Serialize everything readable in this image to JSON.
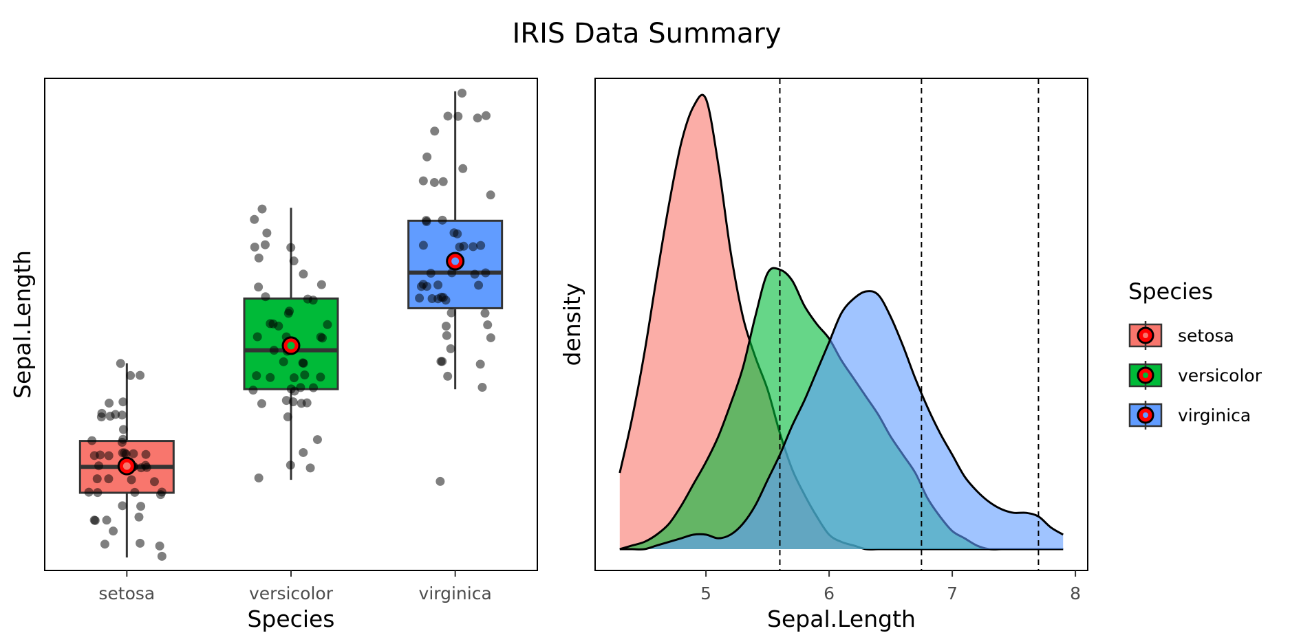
{
  "figure": {
    "title": "IRIS Data Summary"
  },
  "legend": {
    "title": "Species",
    "items": [
      {
        "label": "setosa",
        "color": "#F8766D"
      },
      {
        "label": "versicolor",
        "color": "#00BA38"
      },
      {
        "label": "virginica",
        "color": "#619CFF"
      }
    ]
  },
  "chart_data": [
    {
      "type": "box",
      "xlabel": "Species",
      "ylabel": "Sepal.Length",
      "categories": [
        "setosa",
        "versicolor",
        "virginica"
      ],
      "ylim": [
        4.2,
        8.0
      ],
      "y_ticks_shown": false,
      "grid": false,
      "colors": [
        "#F8766D",
        "#00BA38",
        "#619CFF"
      ],
      "mean_marker_color": "#FF0000",
      "boxes": [
        {
          "name": "setosa",
          "min": 4.3,
          "q1": 4.8,
          "median": 5.0,
          "q3": 5.2,
          "max": 5.8,
          "mean": 5.006
        },
        {
          "name": "versicolor",
          "min": 4.9,
          "q1": 5.6,
          "median": 5.9,
          "q3": 6.3,
          "max": 7.0,
          "mean": 5.936
        },
        {
          "name": "virginica",
          "min": 5.6,
          "q1": 6.225,
          "median": 6.5,
          "q3": 6.9,
          "max": 7.9,
          "mean": 6.588
        }
      ],
      "points": {
        "setosa": [
          5.1,
          4.9,
          4.7,
          4.6,
          5.0,
          5.4,
          4.6,
          5.0,
          4.4,
          4.9,
          5.4,
          4.8,
          4.8,
          4.3,
          5.8,
          5.7,
          5.4,
          5.1,
          5.7,
          5.1,
          5.4,
          5.1,
          4.6,
          5.1,
          4.8,
          5.0,
          5.0,
          5.2,
          5.2,
          4.7,
          4.8,
          5.4,
          5.2,
          5.5,
          4.9,
          5.0,
          5.5,
          4.9,
          4.4,
          5.1,
          5.0,
          4.5,
          4.4,
          5.0,
          5.1,
          4.8,
          5.1,
          4.6,
          5.3,
          5.0
        ],
        "versicolor": [
          7.0,
          6.4,
          6.9,
          5.5,
          6.5,
          5.7,
          6.3,
          4.9,
          6.6,
          5.2,
          5.0,
          5.9,
          6.0,
          6.1,
          5.6,
          6.7,
          5.6,
          5.8,
          6.2,
          5.6,
          5.9,
          6.1,
          6.3,
          6.1,
          6.4,
          6.6,
          6.8,
          6.7,
          6.0,
          5.7,
          5.5,
          5.5,
          5.8,
          6.0,
          5.4,
          6.0,
          6.7,
          6.3,
          5.6,
          5.5,
          5.5,
          6.1,
          5.8,
          5.0,
          5.6,
          5.7,
          5.7,
          6.2,
          5.1,
          5.7
        ],
        "virginica": [
          6.3,
          5.8,
          7.1,
          6.3,
          6.5,
          7.6,
          4.9,
          7.3,
          6.7,
          7.2,
          6.5,
          6.4,
          6.8,
          5.7,
          5.8,
          6.4,
          6.5,
          7.7,
          7.7,
          6.0,
          6.9,
          5.6,
          7.7,
          6.3,
          6.7,
          7.2,
          6.2,
          6.1,
          6.4,
          7.2,
          7.4,
          7.9,
          6.4,
          6.3,
          6.1,
          7.7,
          6.3,
          6.4,
          6.0,
          6.9,
          6.7,
          6.9,
          5.8,
          6.8,
          6.7,
          6.7,
          6.3,
          6.5,
          6.2,
          5.9
        ]
      }
    },
    {
      "type": "area",
      "subtype": "density",
      "xlabel": "Sepal.Length",
      "ylabel": "density",
      "xlim": [
        4.1,
        8.1
      ],
      "x_ticks": [
        5,
        6,
        7,
        8
      ],
      "y_ticks_shown": false,
      "grid": false,
      "fill_opacity": 0.6,
      "vlines": [
        5.6,
        6.75,
        7.7
      ],
      "vline_style": "dashed",
      "series": [
        {
          "name": "setosa",
          "color": "#F8766D",
          "x": [
            4.3,
            4.4,
            4.5,
            4.6,
            4.7,
            4.8,
            4.9,
            5.0,
            5.1,
            5.2,
            5.3,
            5.4,
            5.5,
            5.6,
            5.7,
            5.8,
            5.9,
            6.0,
            6.1,
            6.2,
            6.3,
            6.4,
            6.5,
            6.6,
            6.7,
            6.8,
            6.9,
            7.0,
            7.1,
            7.2,
            7.3,
            7.4,
            7.5,
            7.6,
            7.7,
            7.8,
            7.9
          ],
          "y": [
            0.21,
            0.36,
            0.54,
            0.75,
            0.95,
            1.12,
            1.22,
            1.24,
            1.06,
            0.82,
            0.64,
            0.53,
            0.44,
            0.32,
            0.22,
            0.15,
            0.09,
            0.04,
            0.02,
            0.01,
            0.0,
            0.0,
            0.0,
            0.0,
            0.0,
            0.0,
            0.0,
            0.0,
            0.0,
            0.0,
            0.0,
            0.0,
            0.0,
            0.0,
            0.0,
            0.0,
            0.0
          ]
        },
        {
          "name": "versicolor",
          "color": "#00BA38",
          "x": [
            4.3,
            4.4,
            4.5,
            4.6,
            4.7,
            4.8,
            4.9,
            5.0,
            5.1,
            5.2,
            5.3,
            5.4,
            5.5,
            5.6,
            5.7,
            5.8,
            5.9,
            6.0,
            6.1,
            6.2,
            6.3,
            6.4,
            6.5,
            6.6,
            6.7,
            6.8,
            6.9,
            7.0,
            7.1,
            7.2,
            7.3,
            7.4,
            7.5,
            7.6,
            7.7,
            7.8,
            7.9
          ],
          "y": [
            0.0,
            0.01,
            0.02,
            0.04,
            0.07,
            0.12,
            0.18,
            0.24,
            0.31,
            0.4,
            0.5,
            0.64,
            0.76,
            0.77,
            0.74,
            0.67,
            0.62,
            0.58,
            0.52,
            0.47,
            0.42,
            0.37,
            0.31,
            0.26,
            0.21,
            0.14,
            0.09,
            0.05,
            0.03,
            0.01,
            0.0,
            0.0,
            0.0,
            0.0,
            0.0,
            0.0,
            0.0
          ]
        },
        {
          "name": "virginica",
          "color": "#619CFF",
          "x": [
            4.3,
            4.4,
            4.5,
            4.6,
            4.7,
            4.8,
            4.9,
            5.0,
            5.1,
            5.2,
            5.3,
            5.4,
            5.5,
            5.6,
            5.7,
            5.8,
            5.9,
            6.0,
            6.1,
            6.2,
            6.3,
            6.4,
            6.5,
            6.6,
            6.7,
            6.8,
            6.9,
            7.0,
            7.1,
            7.2,
            7.3,
            7.4,
            7.5,
            7.6,
            7.7,
            7.8,
            7.9
          ],
          "y": [
            0.0,
            0.0,
            0.0,
            0.01,
            0.02,
            0.03,
            0.04,
            0.04,
            0.03,
            0.04,
            0.07,
            0.12,
            0.19,
            0.26,
            0.34,
            0.41,
            0.49,
            0.57,
            0.65,
            0.69,
            0.71,
            0.7,
            0.64,
            0.56,
            0.47,
            0.39,
            0.32,
            0.26,
            0.2,
            0.16,
            0.13,
            0.11,
            0.1,
            0.1,
            0.09,
            0.06,
            0.04
          ]
        }
      ]
    }
  ]
}
